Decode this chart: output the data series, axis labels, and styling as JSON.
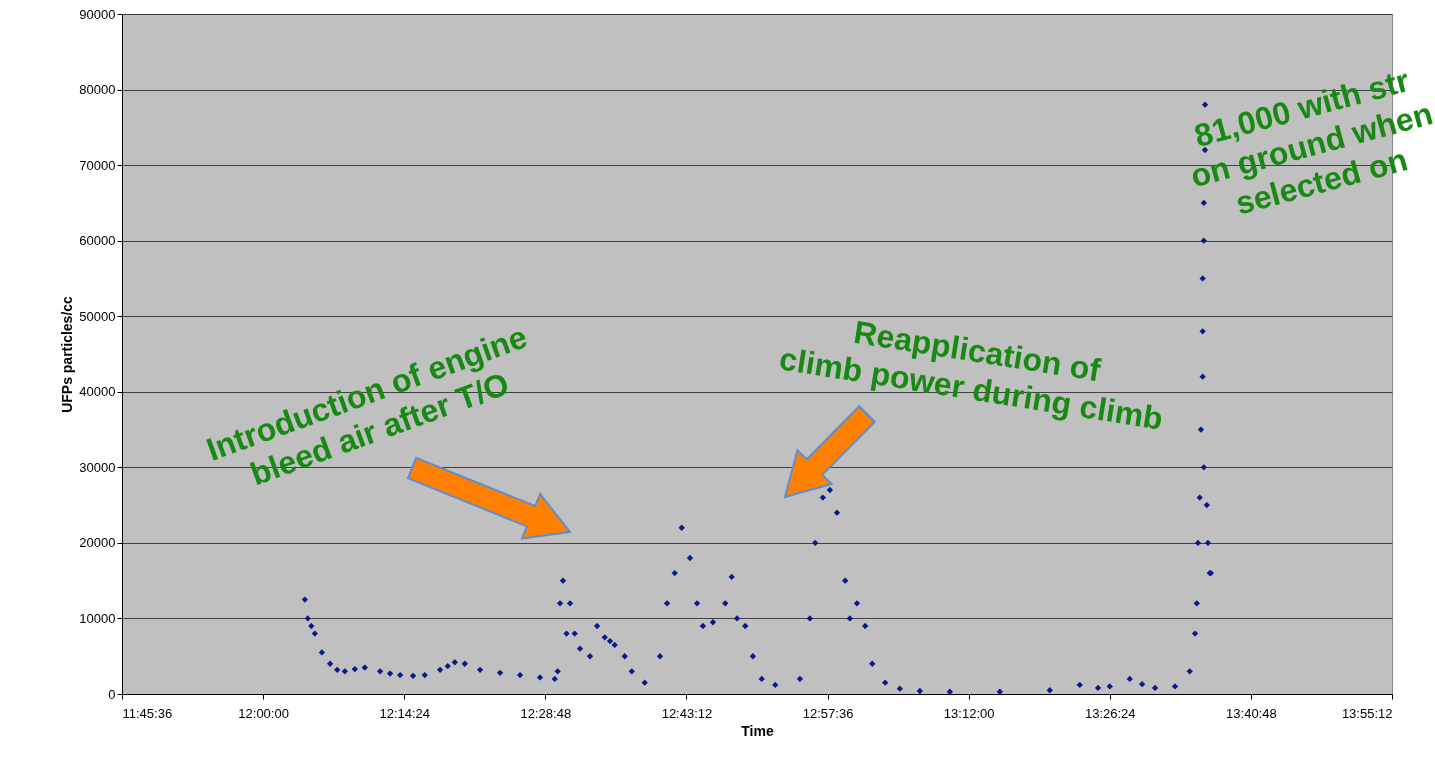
{
  "chart_data": {
    "type": "scatter",
    "xlabel": "Time",
    "ylabel": "UFPs particles/cc",
    "x": [
      12.071,
      12.076,
      12.082,
      12.088,
      12.1,
      12.114,
      12.126,
      12.139,
      12.156,
      12.173,
      12.199,
      12.216,
      12.233,
      12.255,
      12.275,
      12.301,
      12.314,
      12.326,
      12.343,
      12.369,
      12.403,
      12.437,
      12.471,
      12.496,
      12.501,
      12.505,
      12.51,
      12.516,
      12.522,
      12.53,
      12.539,
      12.556,
      12.568,
      12.581,
      12.59,
      12.598,
      12.615,
      12.627,
      12.649,
      12.675,
      12.687,
      12.7,
      12.712,
      12.726,
      12.738,
      12.748,
      12.765,
      12.786,
      12.797,
      12.806,
      12.82,
      12.833,
      12.848,
      12.871,
      12.913,
      12.93,
      12.939,
      12.952,
      12.964,
      12.976,
      12.99,
      12.998,
      13.01,
      13.024,
      13.036,
      13.058,
      13.083,
      13.117,
      13.168,
      13.253,
      13.338,
      13.389,
      13.42,
      13.44,
      13.474,
      13.495,
      13.517,
      13.551,
      13.576,
      13.585,
      13.588,
      13.59,
      13.593,
      13.595,
      13.598,
      13.598,
      13.598,
      13.6,
      13.6,
      13.602,
      13.602,
      13.6,
      13.605,
      13.607,
      13.61,
      13.612
    ],
    "values": [
      12500,
      10000,
      9000,
      8000,
      5500,
      4000,
      3200,
      3000,
      3300,
      3500,
      3000,
      2700,
      2500,
      2400,
      2500,
      3200,
      3700,
      4200,
      4000,
      3200,
      2800,
      2500,
      2200,
      2000,
      3000,
      12000,
      15000,
      8000,
      12000,
      8000,
      6000,
      5000,
      9000,
      7500,
      7000,
      6500,
      5000,
      3000,
      1500,
      5000,
      12000,
      16000,
      22000,
      18000,
      12000,
      9000,
      9500,
      12000,
      15500,
      10000,
      9000,
      5000,
      2000,
      1200,
      2000,
      10000,
      20000,
      26000,
      27000,
      24000,
      15000,
      10000,
      12000,
      9000,
      4000,
      1500,
      700,
      400,
      300,
      300,
      500,
      1200,
      800,
      1000,
      2000,
      1300,
      800,
      1000,
      3000,
      8000,
      12000,
      20000,
      26000,
      35000,
      42000,
      48000,
      55000,
      60000,
      65000,
      72000,
      78000,
      30000,
      25000,
      20000,
      16000,
      16000
    ],
    "color": "#0a1a8c",
    "marker": "diamond",
    "xlim": [
      11.76,
      13.92
    ],
    "xticks": [
      {
        "value": 11.76,
        "label": "11:45:36"
      },
      {
        "value": 12.0,
        "label": "12:00:00"
      },
      {
        "value": 12.24,
        "label": "12:14:24"
      },
      {
        "value": 12.48,
        "label": "12:28:48"
      },
      {
        "value": 12.72,
        "label": "12:43:12"
      },
      {
        "value": 12.96,
        "label": "12:57:36"
      },
      {
        "value": 13.2,
        "label": "13:12:00"
      },
      {
        "value": 13.44,
        "label": "13:26:24"
      },
      {
        "value": 13.68,
        "label": "13:40:48"
      },
      {
        "value": 13.92,
        "label": "13:55:12"
      }
    ],
    "ylim": [
      0,
      90000
    ],
    "yticks": [
      0,
      10000,
      20000,
      30000,
      40000,
      50000,
      60000,
      70000,
      80000,
      90000
    ],
    "grid": "y",
    "annotations": [
      "Introduction of engine\nbleed air after T/O",
      "Reapplication of\nclimb power during climb",
      "81,000 with str\non ground when\nselected on"
    ]
  }
}
